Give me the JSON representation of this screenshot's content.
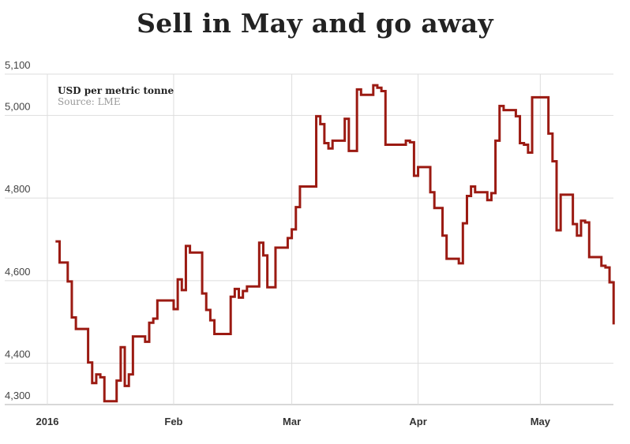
{
  "chart_data": {
    "type": "line",
    "step": true,
    "title": "Sell in May and go away",
    "unit_label": "USD per metric tonne",
    "source": "Source: LME",
    "line_color": "#9b1a12",
    "grid": true,
    "ylim": [
      4300,
      5100
    ],
    "y_ticks": [
      {
        "value": 4300,
        "label": "4,300"
      },
      {
        "value": 4400,
        "label": "4,400"
      },
      {
        "value": 4600,
        "label": "4,600"
      },
      {
        "value": 4800,
        "label": "4,800"
      },
      {
        "value": 5000,
        "label": "5,000"
      },
      {
        "value": 5100,
        "label": "5,100"
      }
    ],
    "x_ticks": [
      {
        "date": "2016-01-01",
        "label": "2016"
      },
      {
        "date": "2016-02-01",
        "label": "Feb"
      },
      {
        "date": "2016-03-01",
        "label": "Mar"
      },
      {
        "date": "2016-04-01",
        "label": "Apr"
      },
      {
        "date": "2016-05-01",
        "label": "May"
      }
    ],
    "points": [
      [
        "2016-01-03",
        4695
      ],
      [
        "2016-01-04",
        4644
      ],
      [
        "2016-01-06",
        4598
      ],
      [
        "2016-01-07",
        4511
      ],
      [
        "2016-01-08",
        4483
      ],
      [
        "2016-01-11",
        4402
      ],
      [
        "2016-01-12",
        4352
      ],
      [
        "2016-01-13",
        4373
      ],
      [
        "2016-01-14",
        4366
      ],
      [
        "2016-01-15",
        4308
      ],
      [
        "2016-01-18",
        4358
      ],
      [
        "2016-01-19",
        4439
      ],
      [
        "2016-01-20",
        4345
      ],
      [
        "2016-01-21",
        4373
      ],
      [
        "2016-01-22",
        4465
      ],
      [
        "2016-01-25",
        4452
      ],
      [
        "2016-01-26",
        4498
      ],
      [
        "2016-01-27",
        4508
      ],
      [
        "2016-01-28",
        4552
      ],
      [
        "2016-02-01",
        4531
      ],
      [
        "2016-02-02",
        4603
      ],
      [
        "2016-02-03",
        4577
      ],
      [
        "2016-02-04",
        4684
      ],
      [
        "2016-02-05",
        4668
      ],
      [
        "2016-02-08",
        4569
      ],
      [
        "2016-02-09",
        4529
      ],
      [
        "2016-02-10",
        4504
      ],
      [
        "2016-02-11",
        4471
      ],
      [
        "2016-02-15",
        4561
      ],
      [
        "2016-02-16",
        4580
      ],
      [
        "2016-02-17",
        4559
      ],
      [
        "2016-02-18",
        4575
      ],
      [
        "2016-02-19",
        4586
      ],
      [
        "2016-02-22",
        4692
      ],
      [
        "2016-02-23",
        4661
      ],
      [
        "2016-02-24",
        4584
      ],
      [
        "2016-02-26",
        4680
      ],
      [
        "2016-02-29",
        4703
      ],
      [
        "2016-03-01",
        4724
      ],
      [
        "2016-03-02",
        4778
      ],
      [
        "2016-03-03",
        4828
      ],
      [
        "2016-03-07",
        4998
      ],
      [
        "2016-03-08",
        4979
      ],
      [
        "2016-03-09",
        4933
      ],
      [
        "2016-03-10",
        4920
      ],
      [
        "2016-03-11",
        4939
      ],
      [
        "2016-03-14",
        4992
      ],
      [
        "2016-03-15",
        4914
      ],
      [
        "2016-03-17",
        5063
      ],
      [
        "2016-03-18",
        5050
      ],
      [
        "2016-03-21",
        5073
      ],
      [
        "2016-03-22",
        5067
      ],
      [
        "2016-03-23",
        5059
      ],
      [
        "2016-03-24",
        4929
      ],
      [
        "2016-03-29",
        4939
      ],
      [
        "2016-03-30",
        4935
      ],
      [
        "2016-03-31",
        4854
      ],
      [
        "2016-04-01",
        4875
      ],
      [
        "2016-04-04",
        4814
      ],
      [
        "2016-04-05",
        4776
      ],
      [
        "2016-04-07",
        4709
      ],
      [
        "2016-04-08",
        4653
      ],
      [
        "2016-04-11",
        4642
      ],
      [
        "2016-04-12",
        4739
      ],
      [
        "2016-04-13",
        4805
      ],
      [
        "2016-04-14",
        4828
      ],
      [
        "2016-04-15",
        4814
      ],
      [
        "2016-04-18",
        4795
      ],
      [
        "2016-04-19",
        4812
      ],
      [
        "2016-04-20",
        4939
      ],
      [
        "2016-04-21",
        5023
      ],
      [
        "2016-04-22",
        5013
      ],
      [
        "2016-04-25",
        4998
      ],
      [
        "2016-04-26",
        4933
      ],
      [
        "2016-04-27",
        4929
      ],
      [
        "2016-04-28",
        4910
      ],
      [
        "2016-04-29",
        5044
      ],
      [
        "2016-05-03",
        4956
      ],
      [
        "2016-05-04",
        4889
      ],
      [
        "2016-05-05",
        4722
      ],
      [
        "2016-05-06",
        4808
      ],
      [
        "2016-05-09",
        4737
      ],
      [
        "2016-05-10",
        4709
      ],
      [
        "2016-05-11",
        4745
      ],
      [
        "2016-05-12",
        4741
      ],
      [
        "2016-05-13",
        4657
      ],
      [
        "2016-05-16",
        4636
      ],
      [
        "2016-05-17",
        4632
      ],
      [
        "2016-05-18",
        4596
      ],
      [
        "2016-05-19",
        4494
      ]
    ]
  }
}
